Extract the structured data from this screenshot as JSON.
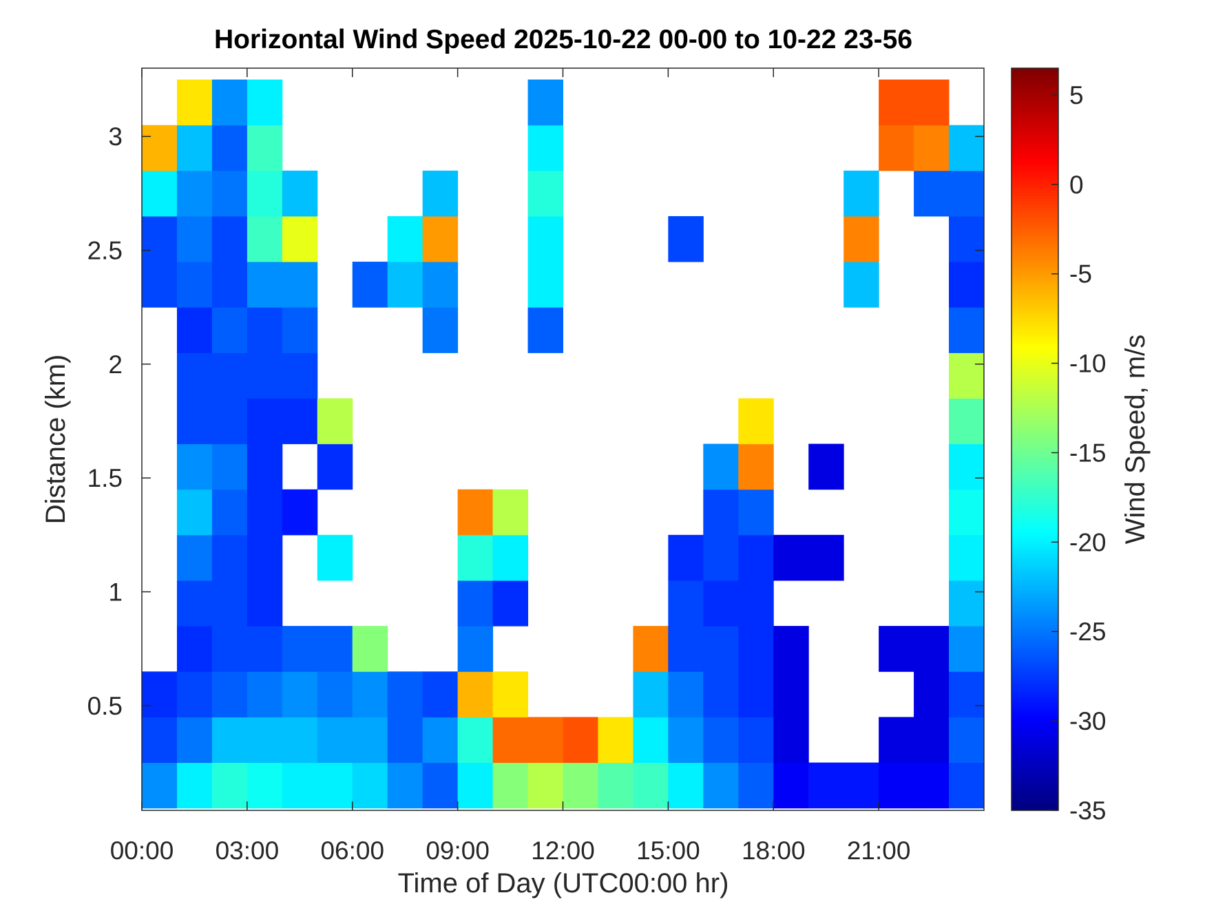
{
  "chart_data": {
    "type": "heatmap",
    "title": "Horizontal Wind Speed 2025-10-22 00-00 to 10-22 23-56",
    "x_label": "Time of Day (UTC00:00 hr)",
    "y_label": "Distance (km)",
    "colorbar_label": "Wind Speed, m/s",
    "colormap": "jet",
    "x": [
      0.5,
      1.5,
      2.5,
      3.5,
      4.5,
      5.5,
      6.5,
      7.5,
      8.5,
      9.5,
      10.5,
      11.5,
      12.5,
      13.5,
      14.5,
      15.5,
      16.5,
      17.5,
      18.5,
      19.5,
      20.5,
      21.5,
      22.5,
      23.5
    ],
    "y": [
      0.15,
      0.35,
      0.55,
      0.75,
      0.95,
      1.15,
      1.35,
      1.55,
      1.75,
      1.95,
      2.15,
      2.35,
      2.55,
      2.75,
      2.95,
      3.15
    ],
    "z": [
      [
        -24,
        -20,
        -18,
        -19,
        -20,
        -20,
        -21,
        -24,
        -26,
        -20,
        -14,
        -12,
        -14,
        -16,
        -17,
        -20,
        -24,
        -26,
        -30,
        -29,
        -29,
        -30,
        -30,
        -27
      ],
      [
        -27,
        -25,
        -22,
        -22,
        -22,
        -23,
        -23,
        -26,
        -24,
        -18,
        -3,
        -3,
        -2,
        -8,
        -20,
        -24,
        -26,
        -27,
        -31,
        null,
        null,
        -31,
        -31,
        -26
      ],
      [
        -28,
        -27,
        -26,
        -25,
        -24,
        -25,
        -24,
        -26,
        -27,
        -6,
        -8,
        null,
        null,
        null,
        -22,
        -25,
        -27,
        -28,
        -31,
        null,
        null,
        null,
        -31,
        -27
      ],
      [
        null,
        -28,
        -27,
        -27,
        -26,
        -26,
        -14,
        null,
        null,
        -25,
        null,
        null,
        null,
        null,
        -4,
        -27,
        -27,
        -28,
        -31,
        null,
        null,
        -31,
        -31,
        -24
      ],
      [
        null,
        -27,
        -27,
        -28,
        null,
        null,
        null,
        null,
        null,
        -26,
        -28,
        null,
        null,
        null,
        null,
        -27,
        -28,
        -28,
        null,
        null,
        null,
        null,
        null,
        -22
      ],
      [
        null,
        -25,
        -27,
        -28,
        null,
        -20,
        null,
        null,
        null,
        -18,
        -20,
        null,
        null,
        null,
        null,
        -28,
        -27,
        -28,
        -31,
        -31,
        null,
        null,
        null,
        -20
      ],
      [
        null,
        -22,
        -26,
        -28,
        -29,
        null,
        null,
        null,
        null,
        -4,
        -12,
        null,
        null,
        null,
        null,
        null,
        -27,
        -26,
        null,
        null,
        null,
        null,
        null,
        -19
      ],
      [
        null,
        -24,
        -25,
        -28,
        null,
        -28,
        null,
        null,
        null,
        null,
        null,
        null,
        null,
        null,
        null,
        null,
        -24,
        -4,
        null,
        -31,
        null,
        null,
        null,
        -20
      ],
      [
        null,
        -27,
        -27,
        -28,
        -28,
        -12,
        null,
        null,
        null,
        null,
        null,
        null,
        null,
        null,
        null,
        null,
        null,
        -8,
        null,
        null,
        null,
        null,
        null,
        -16
      ],
      [
        null,
        -27,
        -27,
        -27,
        -27,
        null,
        null,
        null,
        null,
        null,
        null,
        null,
        null,
        null,
        null,
        null,
        null,
        null,
        null,
        null,
        null,
        null,
        null,
        -12
      ],
      [
        null,
        -28,
        -26,
        -27,
        -26,
        null,
        null,
        null,
        -25,
        null,
        null,
        -26,
        null,
        null,
        null,
        null,
        null,
        null,
        null,
        null,
        null,
        null,
        null,
        -26
      ],
      [
        -27,
        -26,
        -27,
        -24,
        -24,
        null,
        -26,
        -22,
        -24,
        null,
        null,
        -20,
        null,
        null,
        null,
        null,
        null,
        null,
        null,
        null,
        -22,
        null,
        null,
        -28
      ],
      [
        -27,
        -25,
        -27,
        -17,
        -10,
        null,
        null,
        -20,
        -5,
        null,
        null,
        -20,
        null,
        null,
        null,
        -27,
        null,
        null,
        null,
        null,
        -4,
        null,
        null,
        -27
      ],
      [
        -20,
        -24,
        -25,
        -18,
        -22,
        null,
        null,
        null,
        -22,
        null,
        null,
        -18,
        null,
        null,
        null,
        null,
        null,
        null,
        null,
        null,
        -22,
        null,
        -26,
        -26
      ],
      [
        -6,
        -22,
        -26,
        -17,
        null,
        null,
        null,
        null,
        null,
        null,
        null,
        -20,
        null,
        null,
        null,
        null,
        null,
        null,
        null,
        null,
        null,
        -3,
        -4,
        -22
      ],
      [
        null,
        -8,
        -24,
        -20,
        null,
        null,
        null,
        null,
        null,
        null,
        null,
        -24,
        null,
        null,
        null,
        null,
        null,
        null,
        null,
        null,
        null,
        -2,
        -2,
        null
      ]
    ],
    "xlim": [
      0,
      24
    ],
    "ylim": [
      0.04,
      3.3
    ],
    "clim": [
      -35,
      6.5
    ],
    "xticks": [
      {
        "value": 0,
        "label": "00:00"
      },
      {
        "value": 3,
        "label": "03:00"
      },
      {
        "value": 6,
        "label": "06:00"
      },
      {
        "value": 9,
        "label": "09:00"
      },
      {
        "value": 12,
        "label": "12:00"
      },
      {
        "value": 15,
        "label": "15:00"
      },
      {
        "value": 18,
        "label": "18:00"
      },
      {
        "value": 21,
        "label": "21:00"
      }
    ],
    "yticks": [
      0.5,
      1,
      1.5,
      2,
      2.5,
      3
    ],
    "cticks": [
      -35,
      -30,
      -25,
      -20,
      -15,
      -10,
      -5,
      0,
      5
    ]
  }
}
